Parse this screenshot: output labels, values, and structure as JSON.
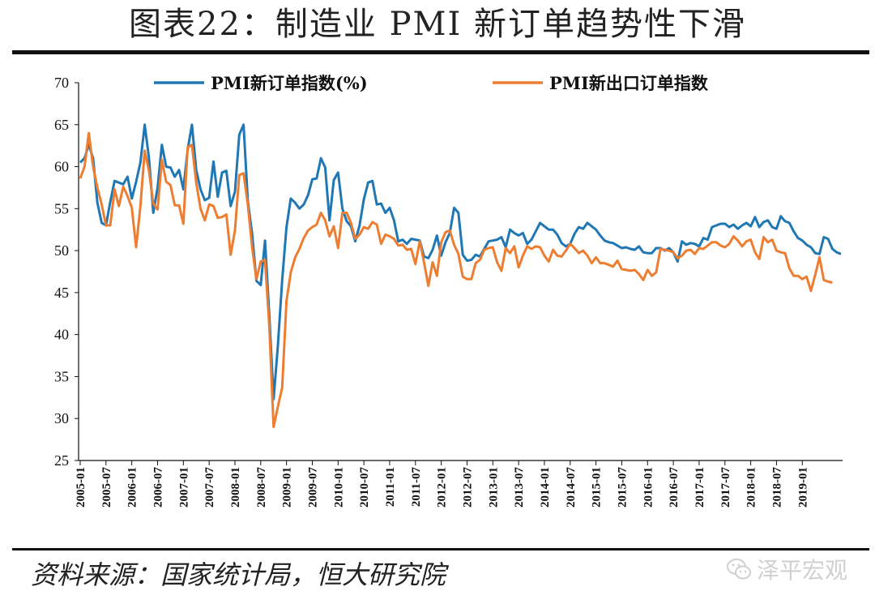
{
  "title": "图表22：制造业 PMI 新订单趋势性下滑",
  "source": "资料来源：国家统计局，恒大研究院",
  "watermark": {
    "text": "泽平宏观",
    "icon": "wechat-icon"
  },
  "colors": {
    "series1": "#1f77b4",
    "series2": "#ed7d31",
    "axis": "#111111"
  },
  "chart_data": {
    "type": "line",
    "title": "",
    "xlabel": "",
    "ylabel": "",
    "ylim": [
      25,
      70
    ],
    "yticks": [
      25,
      30,
      35,
      40,
      45,
      50,
      55,
      60,
      65,
      70
    ],
    "xticks": [
      "2005-01",
      "2005-07",
      "2006-01",
      "2006-07",
      "2007-01",
      "2007-07",
      "2008-01",
      "2008-07",
      "2009-01",
      "2009-07",
      "2010-01",
      "2010-07",
      "2011-01",
      "2011-07",
      "2012-01",
      "2012-07",
      "2013-01",
      "2013-07",
      "2014-01",
      "2014-07",
      "2015-01",
      "2015-07",
      "2016-01",
      "2016-07",
      "2017-01",
      "2017-07",
      "2018-01",
      "2018-07",
      "2019-01"
    ],
    "x_start": "2005-01",
    "legend_position": "top",
    "grid": false,
    "series": [
      {
        "name": "PMI新订单指数(%)",
        "color": "#1f77b4",
        "values": [
          60.5,
          61.0,
          62.6,
          61.0,
          55.7,
          53.3,
          53.0,
          55.8,
          58.3,
          58.1,
          57.9,
          58.8,
          56.2,
          58.2,
          60.5,
          65.0,
          61.0,
          54.5,
          57.5,
          62.6,
          60.0,
          59.9,
          58.8,
          59.6,
          57.3,
          62.0,
          65.0,
          59.6,
          57.3,
          56.0,
          56.3,
          60.6,
          56.4,
          59.3,
          59.5,
          55.3,
          57.0,
          63.8,
          65.0,
          55.9,
          52.0,
          46.4,
          45.9,
          51.2,
          42.3,
          32.3,
          38.7,
          46.5,
          52.8,
          56.2,
          55.7,
          55.0,
          55.5,
          56.6,
          58.5,
          58.6,
          61.0,
          59.9,
          53.6,
          58.4,
          59.3,
          55.0,
          53.5,
          52.9,
          51.1,
          53.0,
          56.1,
          58.1,
          58.3,
          55.5,
          55.6,
          54.5,
          55.1,
          53.6,
          51.1,
          51.3,
          50.8,
          51.4,
          51.3,
          51.2,
          49.3,
          49.1,
          50.1,
          51.8,
          49.4,
          51.0,
          52.1,
          55.1,
          54.5,
          49.5,
          48.8,
          48.9,
          49.5,
          49.3,
          50.2,
          51.1,
          51.2,
          51.3,
          51.6,
          50.4,
          52.5,
          52.1,
          51.8,
          52.1,
          50.8,
          51.3,
          52.3,
          53.3,
          52.9,
          52.5,
          52.5,
          51.9,
          50.9,
          50.5,
          50.8,
          52.0,
          52.8,
          52.6,
          53.3,
          52.9,
          52.5,
          51.8,
          51.2,
          51.0,
          50.9,
          50.6,
          50.3,
          50.4,
          50.2,
          50.1,
          50.5,
          49.8,
          49.7,
          49.7,
          50.3,
          50.3,
          50.0,
          50.3,
          49.8,
          48.7,
          51.1,
          50.7,
          50.9,
          50.8,
          50.5,
          51.5,
          51.3,
          52.8,
          53.0,
          53.2,
          53.2,
          52.8,
          53.1,
          52.6,
          53.0,
          53.3,
          52.9,
          54.0,
          52.8,
          53.4,
          53.6,
          52.8,
          52.6,
          54.1,
          53.5,
          53.3,
          52.3,
          51.5,
          51.2,
          50.7,
          50.4,
          49.7,
          49.6,
          51.6,
          51.4,
          50.2,
          49.8,
          49.6
        ],
        "note": ""
      },
      {
        "name": "PMI新出口订单指数",
        "color": "#ed7d31",
        "values": [
          58.6,
          60.0,
          64.0,
          60.0,
          57.5,
          55.5,
          53.0,
          53.0,
          57.3,
          55.3,
          57.6,
          56.5,
          55.1,
          50.4,
          55.3,
          61.9,
          59.5,
          55.6,
          54.9,
          60.8,
          58.2,
          57.8,
          55.4,
          55.4,
          53.2,
          62.3,
          62.6,
          58.1,
          55.0,
          53.6,
          55.5,
          55.3,
          53.9,
          54.0,
          54.3,
          49.5,
          52.4,
          59.0,
          59.2,
          55.5,
          50.4,
          46.6,
          48.7,
          48.9,
          41.0,
          29.0,
          31.4,
          33.7,
          44.0,
          47.4,
          49.2,
          50.2,
          51.5,
          52.4,
          52.8,
          53.1,
          54.5,
          53.6,
          51.7,
          52.9,
          50.3,
          54.5,
          54.5,
          53.3,
          51.4,
          51.9,
          52.8,
          52.6,
          53.4,
          53.1,
          50.8,
          51.9,
          51.7,
          51.4,
          50.6,
          50.7,
          50.1,
          50.2,
          48.4,
          51.1,
          48.6,
          45.8,
          48.6,
          47.0,
          51.0,
          52.2,
          52.4,
          50.7,
          49.6,
          46.9,
          46.6,
          46.6,
          48.5,
          48.9,
          50.1,
          50.3,
          50.4,
          48.6,
          47.6,
          50.3,
          49.7,
          50.5,
          48.0,
          49.4,
          50.5,
          50.2,
          50.5,
          50.4,
          49.4,
          48.7,
          50.1,
          49.4,
          49.3,
          50.0,
          50.8,
          50.3,
          49.7,
          50.0,
          49.4,
          48.5,
          49.2,
          48.5,
          48.5,
          48.3,
          48.1,
          48.8,
          47.8,
          47.7,
          47.6,
          47.7,
          47.2,
          46.5,
          47.7,
          47.0,
          47.4,
          50.2,
          50.1,
          50.0,
          49.8,
          49.1,
          49.4,
          50.0,
          50.1,
          49.6,
          50.3,
          50.2,
          50.6,
          51.0,
          51.0,
          50.6,
          50.4,
          50.8,
          51.7,
          51.2,
          50.5,
          51.1,
          51.3,
          49.8,
          49.0,
          51.6,
          51.0,
          51.3,
          50.0,
          49.8,
          49.7,
          47.9,
          47.0,
          47.0,
          46.6,
          46.9,
          45.2,
          47.1,
          49.2,
          46.5,
          46.3,
          46.2
        ]
      }
    ]
  }
}
